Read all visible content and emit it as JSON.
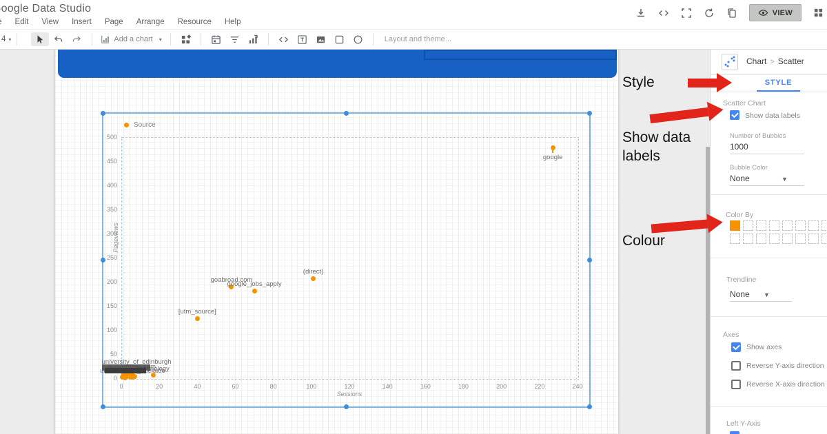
{
  "app": {
    "title": "Google Data Studio",
    "menus": [
      "File",
      "Edit",
      "View",
      "Insert",
      "Page",
      "Arrange",
      "Resource",
      "Help"
    ],
    "topbar_icons": [
      "download-icon",
      "embed-code-icon",
      "fullscreen-icon",
      "refresh-icon",
      "copy-icon",
      "apps-grid-icon"
    ],
    "view_button_label": "VIEW"
  },
  "toolbar": {
    "page_selector": "4",
    "add_chart_label": "Add a chart",
    "layout_theme_label": "Layout and theme...",
    "icons": [
      "select-cursor-icon",
      "undo-icon",
      "redo-icon",
      "blocks-icon",
      "date-range-icon",
      "filter-icon",
      "data-control-icon",
      "embed-icon",
      "text-box-icon",
      "image-icon",
      "rectangle-icon",
      "circle-icon"
    ]
  },
  "chart_data": {
    "type": "scatter",
    "xlabel": "Sessions",
    "ylabel": "Pageviews",
    "xlim": [
      0,
      240
    ],
    "ylim": [
      0,
      500
    ],
    "x_ticks": [
      0,
      20,
      40,
      60,
      80,
      100,
      120,
      140,
      160,
      180,
      200,
      220,
      240
    ],
    "y_ticks": [
      0,
      50,
      100,
      150,
      200,
      250,
      300,
      350,
      400,
      450,
      500
    ],
    "grid": false,
    "legend": {
      "position": "top-left",
      "entries": [
        {
          "name": "Source",
          "color": "#F59300"
        }
      ]
    },
    "point_color": "#F59300",
    "points": [
      {
        "label": "google",
        "x": 227,
        "y": 478,
        "label_pos": "below"
      },
      {
        "label": "(direct)",
        "x": 101,
        "y": 207
      },
      {
        "label": "goabroad.com",
        "x": 58,
        "y": 190
      },
      {
        "label": "google_jobs_apply",
        "x": 70,
        "y": 181
      },
      {
        "label": "[utm_source]",
        "x": 40,
        "y": 124
      },
      {
        "label": "university_of_edinburgh",
        "x": 8,
        "y": 20
      },
      {
        "label": "gooverseas.com",
        "x": 5.5,
        "y": 10
      },
      {
        "label": "university_of_adelaide",
        "x": 6,
        "y": 2
      },
      {
        "label": "technology",
        "x": 17,
        "y": 6
      },
      {
        "label": "",
        "x": 0.5,
        "y": 2
      },
      {
        "label": "",
        "x": 1,
        "y": 5
      },
      {
        "label": "",
        "x": 2,
        "y": 1
      },
      {
        "label": "",
        "x": 3,
        "y": 3
      },
      {
        "label": "",
        "x": 4,
        "y": 6
      },
      {
        "label": "",
        "x": 5,
        "y": 2
      },
      {
        "label": "",
        "x": 2.5,
        "y": 8
      },
      {
        "label": "",
        "x": 7,
        "y": 4
      },
      {
        "label": "",
        "x": 6,
        "y": 12
      }
    ],
    "overlapping_label_blob": true
  },
  "panel": {
    "breadcrumb": {
      "parent": "Chart",
      "separator": ">",
      "current": "Scatter"
    },
    "tab_label": "STYLE",
    "scatter_chart": {
      "section_label": "Scatter Chart",
      "show_data_labels": {
        "label": "Show data labels",
        "checked": true
      },
      "number_of_bubbles": {
        "label": "Number of Bubbles",
        "value": "1000"
      },
      "bubble_color": {
        "label": "Bubble Color",
        "value": "None"
      }
    },
    "color_by": {
      "label": "Color By",
      "selected_color": "#F59300",
      "rows": 2,
      "cols": 8
    },
    "trendline": {
      "label": "Trendline",
      "value": "None"
    },
    "axes": {
      "section_label": "Axes",
      "items": [
        {
          "label": "Show axes",
          "checked": true
        },
        {
          "label": "Reverse Y-axis direction",
          "checked": false
        },
        {
          "label": "Reverse X-axis direction",
          "checked": false
        }
      ]
    },
    "left_y_axis": {
      "section_label": "Left Y-Axis"
    }
  },
  "annotations": {
    "arrow_color": "#E2251B",
    "items": [
      {
        "text": "Style"
      },
      {
        "text": "Show data labels"
      },
      {
        "text": "Colour"
      }
    ]
  },
  "colors": {
    "accent_blue": "#4285F4",
    "selection_blue": "#7DB4E6",
    "header_bar_blue": "#1760C4",
    "orange": "#F59300",
    "annotation_red": "#E2251B"
  }
}
